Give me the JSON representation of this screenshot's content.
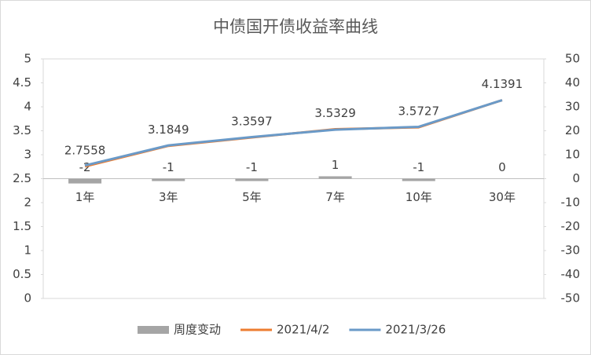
{
  "chart_data": {
    "type": "combo",
    "title": "中债国开债收益率曲线",
    "categories": [
      "1年",
      "3年",
      "5年",
      "7年",
      "10年",
      "30年"
    ],
    "series": [
      {
        "name": "周度变动",
        "type": "bar",
        "axis": "y2",
        "color": "#a5a5a5",
        "values": [
          -2,
          -1,
          -1,
          1,
          -1,
          0
        ]
      },
      {
        "name": "2021/4/2",
        "type": "line",
        "color": "#ed7d31",
        "values": [
          2.7558,
          3.1849,
          3.3597,
          3.5329,
          3.5727,
          4.1391
        ],
        "labels": true
      },
      {
        "name": "2021/3/26",
        "type": "line",
        "color": "#6a9ac8",
        "values": [
          2.7758,
          3.1949,
          3.3697,
          3.5229,
          3.5827,
          4.1391
        ]
      }
    ],
    "ylim": [
      0,
      5
    ],
    "yticks": [
      0,
      0.5,
      1,
      1.5,
      2,
      2.5,
      3,
      3.5,
      4,
      4.5,
      5
    ],
    "y2lim": [
      -50,
      50
    ],
    "y2ticks": [
      -50,
      -40,
      -30,
      -20,
      -10,
      0,
      10,
      20,
      30,
      40,
      50
    ],
    "legend": "bottom"
  }
}
